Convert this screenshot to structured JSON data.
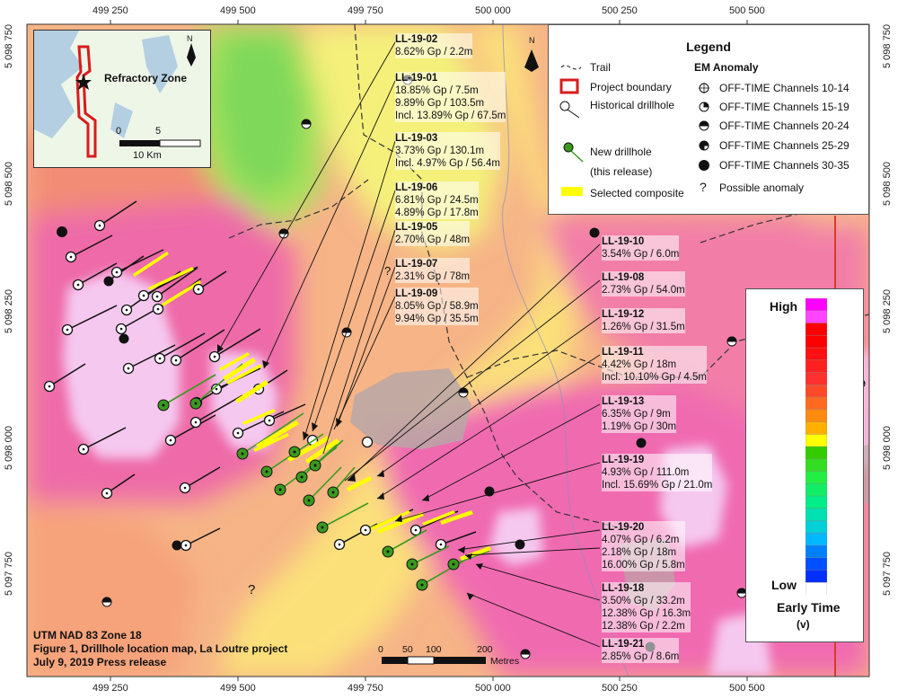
{
  "coord_labels": {
    "x": [
      "499 250",
      "499 500",
      "499 750",
      "500 000",
      "500 250",
      "500 500"
    ],
    "y": [
      "5 098 750",
      "5 098 500",
      "5 098 250",
      "5 098 000",
      "5 097 750"
    ]
  },
  "inset": {
    "label": "Refractory Zone",
    "scale_ticks": [
      "0",
      "5"
    ],
    "scale_unit": "10 Km"
  },
  "legend": {
    "title": "Legend",
    "items": [
      {
        "label": "Trail",
        "icon": "trail-icon"
      },
      {
        "label": "Project boundary",
        "icon": "project-boundary-icon"
      },
      {
        "label": "Historical drillhole",
        "icon": "historical-drillhole-icon"
      },
      {
        "label": "New drillhole",
        "icon": "new-drillhole-icon"
      },
      {
        "label": "(this release)",
        "icon": ""
      },
      {
        "label": "Selected composite",
        "icon": "selected-composite-icon"
      }
    ],
    "em_title": "EM Anomaly",
    "em_items": [
      {
        "label": "OFF-TIME Channels 10-14",
        "icon": "channel-10-14-icon"
      },
      {
        "label": "OFF-TIME Channels 15-19",
        "icon": "channel-15-19-icon"
      },
      {
        "label": "OFF-TIME Channels 20-24",
        "icon": "channel-20-24-icon"
      },
      {
        "label": "OFF-TIME Channels 25-29",
        "icon": "channel-25-29-icon"
      },
      {
        "label": "OFF-TIME Channels 30-35",
        "icon": "channel-30-35-icon"
      },
      {
        "label": "Possible anomaly",
        "icon": "question-mark-icon"
      }
    ]
  },
  "ramp": {
    "high": "High",
    "low": "Low",
    "title": "Early Time",
    "unit": "(v)",
    "colors": [
      "#ff00ff",
      "#ff44ff",
      "#ff0000",
      "#ff0000",
      "#ff1010",
      "#ff2020",
      "#ff3030",
      "#ff4a2a",
      "#ff6a20",
      "#ff8a10",
      "#ffb000",
      "#ffff00",
      "#33cc00",
      "#33dd22",
      "#22ee44",
      "#11ee66",
      "#00ee88",
      "#00e0b0",
      "#00d0d8",
      "#00b8ff",
      "#0080ff",
      "#0050ff",
      "#0030ff",
      "#ffffff"
    ]
  },
  "holes": [
    {
      "id": "LL-19-02",
      "results": [
        "8.62% Gp / 2.2m"
      ]
    },
    {
      "id": "LL-19-01",
      "results": [
        "18.85% Gp / 7.5m",
        "9.89% Gp / 103.5m",
        "Incl. 13.89% Gp / 67.5m"
      ]
    },
    {
      "id": "LL-19-03",
      "results": [
        "3.73% Gp / 130.1m",
        "Incl. 4.97% Gp / 56.4m"
      ]
    },
    {
      "id": "LL-19-06",
      "results": [
        "6.81% Gp / 24.5m",
        "4.89% Gp / 17.8m"
      ]
    },
    {
      "id": "LL-19-05",
      "results": [
        "2.70% Gp / 48m"
      ]
    },
    {
      "id": "LL-19-07",
      "results": [
        "2.31% Gp / 78m"
      ]
    },
    {
      "id": "LL-19-09",
      "results": [
        "8.05% Gp / 58.9m",
        "9.94% Gp / 35.5m"
      ]
    },
    {
      "id": "LL-19-10",
      "results": [
        "3.54% Gp / 6.0m"
      ]
    },
    {
      "id": "LL-19-08",
      "results": [
        "2.73% Gp / 54.0m"
      ]
    },
    {
      "id": "LL-19-12",
      "results": [
        "1.26% Gp / 31.5m"
      ]
    },
    {
      "id": "LL-19-11",
      "results": [
        "4.42% Gp / 18m",
        "Incl. 10.10% Gp / 4.5m"
      ]
    },
    {
      "id": "LL-19-13",
      "results": [
        "6.35% Gp / 9m",
        "1.19% Gp / 30m"
      ]
    },
    {
      "id": "LL-19-19",
      "results": [
        "4.93% Gp / 111.0m",
        "Incl. 15.69% Gp / 21.0m"
      ]
    },
    {
      "id": "LL-19-20",
      "results": [
        "4.07% Gp / 6.2m",
        "2.18% Gp / 18m",
        "16.00% Gp / 5.8m"
      ]
    },
    {
      "id": "LL-19-18",
      "results": [
        "3.50% Gp / 33.2m",
        "12.38% Gp / 16.3m",
        "12.38% Gp / 2.2m"
      ]
    },
    {
      "id": "LL-19-21",
      "results": [
        "2.85% Gp / 8.6m"
      ]
    }
  ],
  "scale_bar": {
    "ticks": [
      "0",
      "50",
      "100",
      "200"
    ],
    "unit": "Metres"
  },
  "caption": [
    "UTM NAD 83 Zone 18",
    "Figure 1, Drillhole location map, La Loutre project",
    "July 9, 2019 Press release"
  ],
  "north_label": "N",
  "possible_anomaly_mark": "?",
  "colors": {
    "new_drillhole": "#3a9a1e",
    "composite": "#ffff00",
    "boundary": "#d81c1c"
  }
}
